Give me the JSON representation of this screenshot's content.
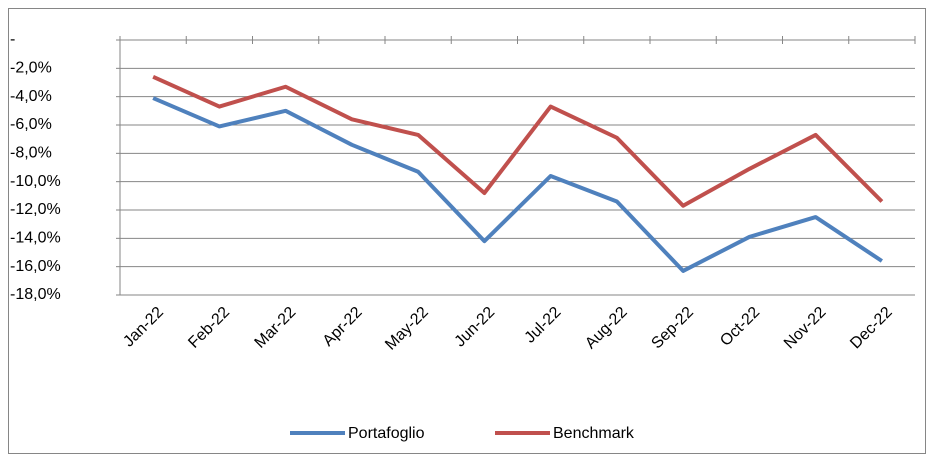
{
  "chart_data": {
    "type": "line",
    "categories": [
      "Jan-22",
      "Feb-22",
      "Mar-22",
      "Apr-22",
      "May-22",
      "Jun-22",
      "Jul-22",
      "Aug-22",
      "Sep-22",
      "Oct-22",
      "Nov-22",
      "Dec-22"
    ],
    "series": [
      {
        "name": "Portafoglio",
        "color": "#4f81bd",
        "values": [
          -4.1,
          -6.1,
          -5.0,
          -7.4,
          -9.3,
          -14.2,
          -9.6,
          -11.4,
          -16.3,
          -13.9,
          -12.5,
          -15.6
        ]
      },
      {
        "name": "Benchmark",
        "color": "#c0504d",
        "values": [
          -2.6,
          -4.7,
          -3.3,
          -5.6,
          -6.7,
          -10.8,
          -4.7,
          -6.9,
          -11.7,
          -9.1,
          -6.7,
          -11.4
        ]
      }
    ],
    "ylim": [
      -18,
      0
    ],
    "yticks": [
      {
        "value": 0,
        "label": "-"
      },
      {
        "value": -2,
        "label": "-2,0%"
      },
      {
        "value": -4,
        "label": "-4,0%"
      },
      {
        "value": -6,
        "label": "-6,0%"
      },
      {
        "value": -8,
        "label": "-8,0%"
      },
      {
        "value": -10,
        "label": "-10,0%"
      },
      {
        "value": -12,
        "label": "-12,0%"
      },
      {
        "value": -14,
        "label": "-14,0%"
      },
      {
        "value": -16,
        "label": "-16,0%"
      },
      {
        "value": -18,
        "label": "-18,0%"
      }
    ],
    "grid": true,
    "legend": "bottom"
  }
}
